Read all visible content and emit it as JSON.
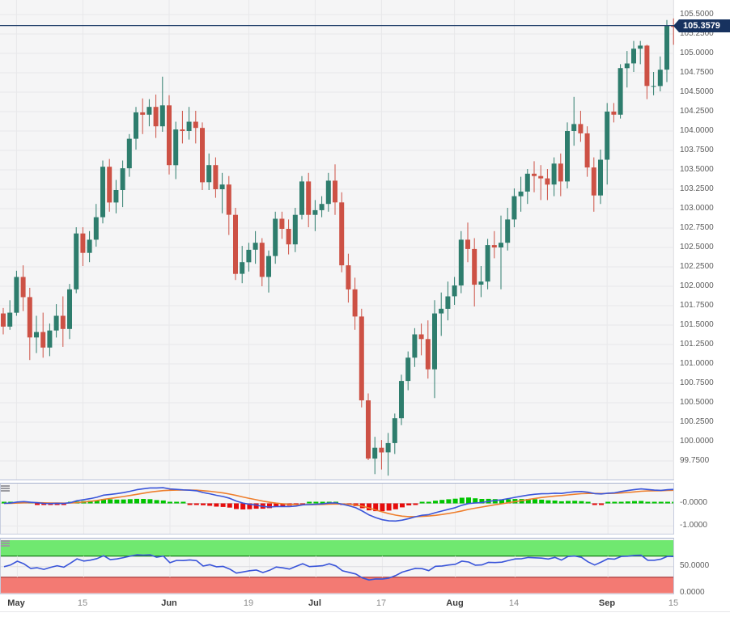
{
  "chart_data": {
    "type": "candlestick",
    "instrument_note": "daily candlestick price chart with MACD and RSI sub-panels",
    "price_line": {
      "label": "105.3579",
      "value": 105.3579
    },
    "y_axis": {
      "max": 105.5,
      "min": 99.75,
      "step": 0.25,
      "ticks": [
        "105.5000",
        "105.2500",
        "105.0000",
        "104.7500",
        "104.5000",
        "104.2500",
        "104.0000",
        "103.7500",
        "103.5000",
        "103.2500",
        "103.0000",
        "102.7500",
        "102.5000",
        "102.2500",
        "102.0000",
        "101.7500",
        "101.5000",
        "101.2500",
        "101.0000",
        "100.7500",
        "100.5000",
        "100.2500",
        "100.0000",
        "99.7500"
      ]
    },
    "x_ticks": [
      {
        "label": "May",
        "index": 2,
        "bold": true
      },
      {
        "label": "15",
        "index": 12,
        "bold": false
      },
      {
        "label": "Jun",
        "index": 25,
        "bold": true
      },
      {
        "label": "19",
        "index": 37,
        "bold": false
      },
      {
        "label": "Jul",
        "index": 47,
        "bold": true
      },
      {
        "label": "17",
        "index": 57,
        "bold": false
      },
      {
        "label": "Aug",
        "index": 68,
        "bold": true
      },
      {
        "label": "14",
        "index": 77,
        "bold": false
      },
      {
        "label": "Sep",
        "index": 91,
        "bold": true
      },
      {
        "label": "15",
        "index": 101,
        "bold": false
      }
    ],
    "candles": [
      [
        101.65,
        101.72,
        101.38,
        101.48
      ],
      [
        101.48,
        101.82,
        101.44,
        101.66
      ],
      [
        101.66,
        102.2,
        101.62,
        102.12
      ],
      [
        102.12,
        102.27,
        101.68,
        101.86
      ],
      [
        101.86,
        101.98,
        101.05,
        101.34
      ],
      [
        101.34,
        101.62,
        101.14,
        101.41
      ],
      [
        101.41,
        101.66,
        101.08,
        101.21
      ],
      [
        101.21,
        101.52,
        101.1,
        101.43
      ],
      [
        101.43,
        101.77,
        101.34,
        101.62
      ],
      [
        101.62,
        101.87,
        101.22,
        101.45
      ],
      [
        101.45,
        102.03,
        101.32,
        101.96
      ],
      [
        101.96,
        102.76,
        101.91,
        102.68
      ],
      [
        102.68,
        102.76,
        102.26,
        102.43
      ],
      [
        102.43,
        102.71,
        102.31,
        102.6
      ],
      [
        102.6,
        103.06,
        102.51,
        102.89
      ],
      [
        102.89,
        103.62,
        102.81,
        103.54
      ],
      [
        103.54,
        103.64,
        102.96,
        103.08
      ],
      [
        103.08,
        103.37,
        102.94,
        103.24
      ],
      [
        103.24,
        103.62,
        103.02,
        103.52
      ],
      [
        103.52,
        103.96,
        103.41,
        103.9
      ],
      [
        103.9,
        104.31,
        103.76,
        104.24
      ],
      [
        104.24,
        104.42,
        103.96,
        104.21
      ],
      [
        104.21,
        104.41,
        104.06,
        104.31
      ],
      [
        104.31,
        104.47,
        103.91,
        104.06
      ],
      [
        104.06,
        104.7,
        103.99,
        104.33
      ],
      [
        104.33,
        104.46,
        103.44,
        103.56
      ],
      [
        103.56,
        104.12,
        103.38,
        104.02
      ],
      [
        104.02,
        104.26,
        103.84,
        104.0
      ],
      [
        104.0,
        104.31,
        103.89,
        104.12
      ],
      [
        104.12,
        104.26,
        103.84,
        104.04
      ],
      [
        104.04,
        104.11,
        103.24,
        103.34
      ],
      [
        103.34,
        103.71,
        103.24,
        103.56
      ],
      [
        103.56,
        103.66,
        103.14,
        103.25
      ],
      [
        103.25,
        103.46,
        102.94,
        103.31
      ],
      [
        103.31,
        103.42,
        102.66,
        102.92
      ],
      [
        102.92,
        103.01,
        102.08,
        102.16
      ],
      [
        102.16,
        102.52,
        102.04,
        102.31
      ],
      [
        102.31,
        102.56,
        102.19,
        102.47
      ],
      [
        102.47,
        102.71,
        102.29,
        102.56
      ],
      [
        102.56,
        102.62,
        102.0,
        102.12
      ],
      [
        102.12,
        102.46,
        101.92,
        102.39
      ],
      [
        102.39,
        102.96,
        102.29,
        102.87
      ],
      [
        102.87,
        102.96,
        102.61,
        102.74
      ],
      [
        102.74,
        102.86,
        102.41,
        102.54
      ],
      [
        102.54,
        103.01,
        102.44,
        102.92
      ],
      [
        102.92,
        103.42,
        102.86,
        103.35
      ],
      [
        103.35,
        103.46,
        102.76,
        102.92
      ],
      [
        102.92,
        103.11,
        102.71,
        102.98
      ],
      [
        102.98,
        103.16,
        102.89,
        103.06
      ],
      [
        103.06,
        103.46,
        102.96,
        103.36
      ],
      [
        103.36,
        103.57,
        102.92,
        103.08
      ],
      [
        103.08,
        103.21,
        102.18,
        102.27
      ],
      [
        102.27,
        102.42,
        101.79,
        101.96
      ],
      [
        101.96,
        102.11,
        101.44,
        101.61
      ],
      [
        101.61,
        101.71,
        100.44,
        100.53
      ],
      [
        100.53,
        100.62,
        99.76,
        99.78
      ],
      [
        99.78,
        100.06,
        99.58,
        99.92
      ],
      [
        99.92,
        100.02,
        99.64,
        99.86
      ],
      [
        99.86,
        100.11,
        99.56,
        99.98
      ],
      [
        99.98,
        100.36,
        99.84,
        100.3
      ],
      [
        100.3,
        100.86,
        100.21,
        100.78
      ],
      [
        100.78,
        101.16,
        100.66,
        101.08
      ],
      [
        101.08,
        101.46,
        100.96,
        101.38
      ],
      [
        101.38,
        101.52,
        101.11,
        101.32
      ],
      [
        101.32,
        101.56,
        100.81,
        100.93
      ],
      [
        100.93,
        101.82,
        100.56,
        101.65
      ],
      [
        101.65,
        101.92,
        101.36,
        101.71
      ],
      [
        101.71,
        102.06,
        101.56,
        101.87
      ],
      [
        101.87,
        102.12,
        101.76,
        102.01
      ],
      [
        102.01,
        102.71,
        101.91,
        102.6
      ],
      [
        102.6,
        102.82,
        102.31,
        102.48
      ],
      [
        102.48,
        102.62,
        101.74,
        102.02
      ],
      [
        102.02,
        102.26,
        101.86,
        102.06
      ],
      [
        102.06,
        102.61,
        101.96,
        102.53
      ],
      [
        102.53,
        102.71,
        102.36,
        102.5
      ],
      [
        102.5,
        102.91,
        101.96,
        102.56
      ],
      [
        102.56,
        103.01,
        102.46,
        102.86
      ],
      [
        102.86,
        103.26,
        102.76,
        103.16
      ],
      [
        103.16,
        103.41,
        102.96,
        103.22
      ],
      [
        103.22,
        103.51,
        103.06,
        103.45
      ],
      [
        103.45,
        103.61,
        103.21,
        103.42
      ],
      [
        103.42,
        103.56,
        103.11,
        103.39
      ],
      [
        103.39,
        103.51,
        103.11,
        103.31
      ],
      [
        103.31,
        103.66,
        103.16,
        103.58
      ],
      [
        103.58,
        103.71,
        103.16,
        103.35
      ],
      [
        103.35,
        104.11,
        103.26,
        104.0
      ],
      [
        104.0,
        104.44,
        103.81,
        104.09
      ],
      [
        104.09,
        104.26,
        103.86,
        103.97
      ],
      [
        103.97,
        104.06,
        103.41,
        103.53
      ],
      [
        103.53,
        103.66,
        102.96,
        103.17
      ],
      [
        103.17,
        103.76,
        103.06,
        103.63
      ],
      [
        103.63,
        104.36,
        103.31,
        104.25
      ],
      [
        104.25,
        104.36,
        104.11,
        104.21
      ],
      [
        104.21,
        104.86,
        104.16,
        104.81
      ],
      [
        104.81,
        105.03,
        104.56,
        104.87
      ],
      [
        104.87,
        105.16,
        104.76,
        105.06
      ],
      [
        105.06,
        105.16,
        104.86,
        105.1
      ],
      [
        105.1,
        105.11,
        104.41,
        104.58
      ],
      [
        104.58,
        104.76,
        104.46,
        104.58
      ],
      [
        104.58,
        104.96,
        104.51,
        104.79
      ],
      [
        104.79,
        105.43,
        104.63,
        105.36
      ],
      [
        105.36,
        105.45,
        105.11,
        105.34
      ]
    ],
    "indicators": {
      "macd": {
        "fast": 12,
        "slow": 26,
        "signal": 9,
        "axis_labels": [
          "-0.0000",
          "-1.0000"
        ],
        "axis_values": [
          0,
          -1
        ]
      },
      "rsi": {
        "period": 14,
        "upper": 70,
        "lower": 30,
        "axis_labels": [
          "50.0000",
          "0.0000"
        ],
        "axis_values": [
          50,
          0
        ]
      }
    },
    "colors": {
      "bullish": "#2e7d6d",
      "bearish": "#cd5145",
      "price_line": "#26436e",
      "badge_bg": "#17325f",
      "macd_line": "#3a55d9",
      "signal_line": "#ee7f2e",
      "hist_up": "#00c400",
      "hist_down": "#e60c0c",
      "rsi_line": "#3a55d9",
      "overbought_band": "#70e870",
      "oversold_band": "#f37a73",
      "overbought_edge": "#157a15",
      "oversold_edge": "#a03030",
      "plot_bg": "#f5f5f6",
      "grid": "#e8e8ea"
    }
  }
}
